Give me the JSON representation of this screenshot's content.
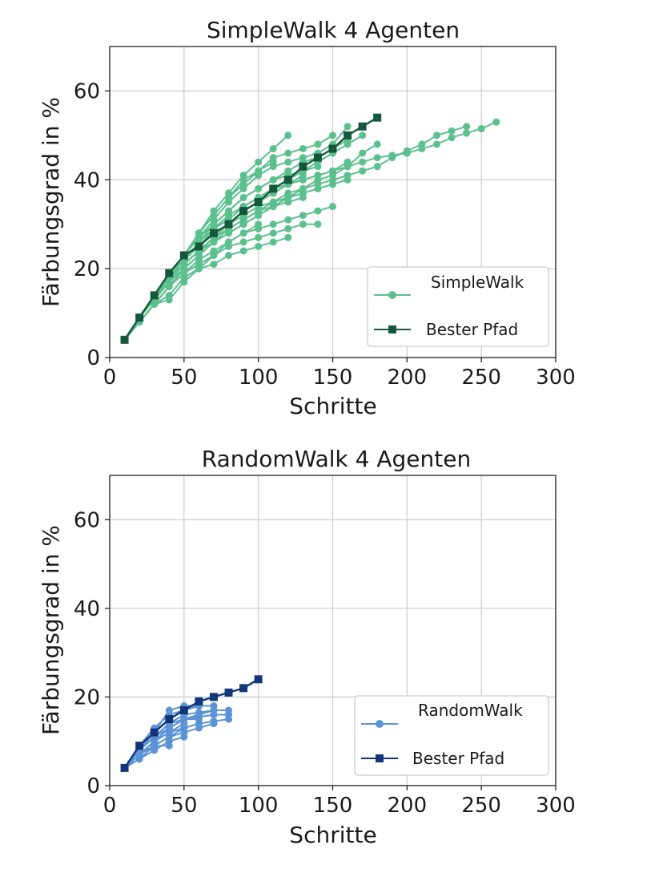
{
  "chart_data": [
    {
      "type": "line",
      "title": "SimpleWalk  4 Agenten",
      "xlabel": "Schritte",
      "ylabel": "Färbungsgrad in %",
      "xlim": [
        0,
        300
      ],
      "ylim": [
        0,
        70
      ],
      "xticks": [
        0,
        50,
        100,
        150,
        200,
        250,
        300
      ],
      "yticks": [
        0,
        20,
        40,
        60
      ],
      "grid": true,
      "legend_position": "lower-right",
      "legend": [
        "SimpleWalk",
        "Bester Pfad"
      ],
      "colors": {
        "runs": "#5cc08e",
        "best": "#15573b"
      },
      "series": [
        {
          "name": "SimpleWalk",
          "x": [
            10,
            20,
            30,
            40,
            50,
            60,
            70,
            80,
            90,
            100,
            110,
            120,
            130,
            140,
            150,
            160,
            170,
            180,
            190,
            200,
            210,
            220,
            230,
            240,
            250,
            260
          ],
          "y": [
            4,
            9,
            14,
            19,
            22,
            25,
            28,
            30,
            33,
            35,
            37,
            39,
            40,
            41,
            42,
            43,
            44,
            45,
            45.5,
            46,
            47,
            48,
            49.5,
            50.5,
            51.5,
            53
          ]
        },
        {
          "name": "SimpleWalk",
          "x": [
            10,
            20,
            30,
            40,
            50,
            60,
            70,
            80,
            90,
            100,
            110,
            120,
            130,
            140,
            150,
            160,
            170,
            180,
            190,
            200,
            210,
            220,
            230,
            240
          ],
          "y": [
            4,
            9,
            13,
            18,
            21,
            24,
            27,
            29,
            31,
            33,
            35,
            37,
            38,
            39,
            40,
            41,
            42,
            43,
            45,
            46.5,
            48,
            50,
            51,
            52
          ]
        },
        {
          "name": "SimpleWalk",
          "x": [
            10,
            20,
            30,
            40,
            50,
            60,
            70,
            80,
            90,
            100,
            110,
            120,
            130,
            140,
            150,
            160,
            170,
            180
          ],
          "y": [
            4,
            9,
            13,
            18,
            21,
            24,
            26,
            28,
            30,
            32,
            34,
            36,
            38,
            40,
            41,
            43,
            46,
            48
          ]
        },
        {
          "name": "SimpleWalk",
          "x": [
            10,
            20,
            30,
            40,
            50,
            60,
            70,
            80,
            90,
            100,
            110,
            120,
            130,
            140,
            150,
            160,
            170
          ],
          "y": [
            4,
            9,
            14,
            19,
            23,
            27,
            30,
            33,
            36,
            38,
            40,
            41,
            42,
            44,
            46,
            48,
            50
          ]
        },
        {
          "name": "SimpleWalk",
          "x": [
            10,
            20,
            30,
            40,
            50,
            60,
            70,
            80,
            90,
            100,
            110,
            120
          ],
          "y": [
            4,
            9,
            14,
            19,
            23,
            28,
            33,
            37,
            41,
            44,
            47,
            50
          ]
        },
        {
          "name": "SimpleWalk",
          "x": [
            10,
            20,
            30,
            40,
            50,
            60,
            70,
            80,
            90,
            100,
            110,
            120,
            130,
            140,
            150
          ],
          "y": [
            4,
            9,
            14,
            19,
            23,
            28,
            32,
            36,
            40,
            42,
            45,
            46,
            47,
            48,
            50
          ]
        },
        {
          "name": "SimpleWalk",
          "x": [
            10,
            20,
            30,
            40,
            50,
            60,
            70,
            80,
            90,
            100,
            110,
            120,
            130,
            140,
            150,
            160
          ],
          "y": [
            4,
            9,
            14,
            19,
            23,
            27,
            31,
            35,
            38,
            41,
            43,
            44,
            45,
            46,
            48,
            52
          ]
        },
        {
          "name": "SimpleWalk",
          "x": [
            10,
            20,
            30,
            40,
            50,
            60,
            70,
            80,
            90,
            100,
            110,
            120,
            130,
            140,
            150,
            160
          ],
          "y": [
            4,
            9,
            14,
            19,
            22,
            26,
            30,
            33,
            36,
            38,
            40,
            42,
            44,
            45,
            47,
            49
          ]
        },
        {
          "name": "SimpleWalk",
          "x": [
            10,
            20,
            30,
            40,
            50,
            60,
            70,
            80,
            90,
            100,
            110,
            120,
            130,
            140,
            150,
            160
          ],
          "y": [
            4,
            9,
            14,
            18,
            22,
            25,
            29,
            32,
            34,
            36,
            38,
            39,
            40,
            41,
            42,
            44
          ]
        },
        {
          "name": "SimpleWalk",
          "x": [
            10,
            20,
            30,
            40,
            50,
            60,
            70,
            80,
            90,
            100,
            110,
            120,
            130,
            140,
            150,
            160
          ],
          "y": [
            4,
            9,
            13,
            18,
            21,
            24,
            27,
            30,
            32,
            34,
            35,
            36,
            37,
            38,
            39,
            40
          ]
        },
        {
          "name": "SimpleWalk",
          "x": [
            10,
            20,
            30,
            40,
            50,
            60,
            70,
            80,
            90,
            100,
            110,
            120,
            130,
            140,
            150
          ],
          "y": [
            4,
            8,
            12,
            16,
            20,
            23,
            26,
            29,
            31,
            33,
            34,
            36,
            37,
            38,
            39
          ]
        },
        {
          "name": "SimpleWalk",
          "x": [
            10,
            20,
            30,
            40,
            50,
            60,
            70,
            80,
            90,
            100,
            110,
            120,
            130,
            140,
            150
          ],
          "y": [
            4,
            8,
            12,
            16,
            19,
            22,
            24,
            26,
            28,
            29,
            30,
            31,
            32,
            33,
            34
          ]
        },
        {
          "name": "SimpleWalk",
          "x": [
            10,
            20,
            30,
            40,
            50,
            60,
            70,
            80,
            90,
            100,
            110,
            120,
            130,
            140
          ],
          "y": [
            4,
            8,
            12,
            16,
            19,
            21,
            23,
            25,
            26,
            27,
            28,
            29,
            30,
            30
          ]
        },
        {
          "name": "SimpleWalk",
          "x": [
            10,
            20,
            30,
            40,
            50,
            60,
            70,
            80,
            90,
            100,
            110,
            120
          ],
          "y": [
            4,
            8,
            12,
            14,
            18,
            20,
            21,
            23,
            24,
            25,
            26,
            27
          ]
        },
        {
          "name": "SimpleWalk",
          "x": [
            10,
            20,
            30,
            40,
            50,
            60,
            70,
            80,
            90,
            100,
            110,
            120,
            130
          ],
          "y": [
            4,
            9,
            13,
            17,
            21,
            24,
            27,
            30,
            33,
            35,
            37,
            39,
            41
          ]
        },
        {
          "name": "SimpleWalk",
          "x": [
            10,
            20,
            30,
            40,
            50,
            60,
            70,
            80,
            90,
            100,
            110,
            120,
            130,
            140
          ],
          "y": [
            4,
            9,
            14,
            18,
            22,
            26,
            29,
            31,
            34,
            36,
            38,
            40,
            42,
            43
          ]
        },
        {
          "name": "SimpleWalk",
          "x": [
            10,
            20,
            30,
            40,
            50,
            60,
            70,
            80,
            90,
            100,
            110
          ],
          "y": [
            4,
            9,
            14,
            19,
            23,
            28,
            32,
            36,
            39,
            42,
            44
          ]
        },
        {
          "name": "SimpleWalk",
          "x": [
            10,
            20,
            30,
            40,
            50,
            60,
            70,
            80,
            90,
            100,
            110,
            120,
            130
          ],
          "y": [
            4,
            9,
            13,
            17,
            20,
            23,
            26,
            28,
            30,
            32,
            34,
            35,
            36
          ]
        },
        {
          "name": "SimpleWalk",
          "x": [
            10,
            20,
            30,
            40,
            50,
            60,
            70,
            80,
            90,
            100
          ],
          "y": [
            4,
            8,
            12,
            13,
            17,
            20,
            23,
            26,
            28,
            30
          ]
        },
        {
          "name": "Bester Pfad",
          "x": [
            10,
            20,
            30,
            40,
            50,
            60,
            70,
            80,
            90,
            100,
            110,
            120,
            130,
            140,
            150,
            160,
            170,
            180
          ],
          "y": [
            4,
            9,
            14,
            19,
            23,
            25,
            28,
            30,
            33,
            35,
            38,
            40,
            43,
            45,
            47,
            50,
            52,
            54
          ]
        }
      ]
    },
    {
      "type": "line",
      "title": "RandomWalk 4 Agenten",
      "xlabel": "Schritte",
      "ylabel": "Färbungsgrad in %",
      "xlim": [
        0,
        300
      ],
      "ylim": [
        0,
        70
      ],
      "xticks": [
        0,
        50,
        100,
        150,
        200,
        250,
        300
      ],
      "yticks": [
        0,
        20,
        40,
        60
      ],
      "grid": true,
      "legend_position": "lower-right",
      "legend": [
        "RandomWalk",
        "Bester Pfad"
      ],
      "colors": {
        "runs": "#5b93d6",
        "best": "#13357a"
      },
      "series": [
        {
          "name": "RandomWalk",
          "x": [
            10,
            20,
            30,
            40,
            50,
            60,
            70,
            80
          ],
          "y": [
            4,
            8,
            11,
            14,
            16,
            16.5,
            17,
            17
          ]
        },
        {
          "name": "RandomWalk",
          "x": [
            10,
            20,
            30,
            40,
            50,
            60,
            70,
            80
          ],
          "y": [
            4,
            7,
            10,
            12,
            13,
            14,
            14.5,
            15
          ]
        },
        {
          "name": "RandomWalk",
          "x": [
            10,
            20,
            30,
            40,
            50,
            60,
            70,
            80
          ],
          "y": [
            4,
            8,
            11,
            13,
            15,
            15.5,
            16,
            16
          ]
        },
        {
          "name": "RandomWalk",
          "x": [
            10,
            20,
            30,
            40,
            50,
            60,
            70
          ],
          "y": [
            4,
            7,
            9,
            11,
            12,
            13,
            14
          ]
        },
        {
          "name": "RandomWalk",
          "x": [
            10,
            20,
            30,
            40,
            50,
            60,
            70
          ],
          "y": [
            4,
            8,
            12,
            15,
            17,
            18,
            18
          ]
        },
        {
          "name": "RandomWalk",
          "x": [
            10,
            20,
            30,
            40,
            50,
            60
          ],
          "y": [
            4,
            9,
            13,
            16,
            17,
            18
          ]
        },
        {
          "name": "RandomWalk",
          "x": [
            10,
            20,
            30,
            40,
            50,
            60
          ],
          "y": [
            4,
            8,
            12,
            17,
            18,
            18
          ]
        },
        {
          "name": "RandomWalk",
          "x": [
            10,
            20,
            30,
            40,
            50,
            60
          ],
          "y": [
            4,
            7,
            10,
            13,
            15,
            16
          ]
        },
        {
          "name": "RandomWalk",
          "x": [
            10,
            20,
            30,
            40,
            50,
            60
          ],
          "y": [
            4,
            6,
            9,
            11,
            13,
            14
          ]
        },
        {
          "name": "RandomWalk",
          "x": [
            10,
            20,
            30,
            40,
            50
          ],
          "y": [
            4,
            6,
            8,
            10,
            11
          ]
        },
        {
          "name": "RandomWalk",
          "x": [
            10,
            20,
            30,
            40,
            50
          ],
          "y": [
            4,
            7,
            10,
            12,
            14
          ]
        },
        {
          "name": "RandomWalk",
          "x": [
            10,
            20,
            30,
            40,
            50,
            60
          ],
          "y": [
            4,
            8,
            11,
            14,
            15,
            15
          ]
        },
        {
          "name": "RandomWalk",
          "x": [
            10,
            20,
            30,
            40
          ],
          "y": [
            4,
            7,
            9,
            9
          ]
        },
        {
          "name": "RandomWalk",
          "x": [
            10,
            20,
            30,
            40,
            50,
            60,
            70
          ],
          "y": [
            4,
            7,
            10,
            13,
            15,
            16,
            17
          ]
        },
        {
          "name": "Bester Pfad",
          "x": [
            10,
            20,
            30,
            40,
            50,
            60,
            70,
            80,
            90,
            100
          ],
          "y": [
            4,
            9,
            12,
            15,
            17,
            19,
            20,
            21,
            22,
            24
          ]
        }
      ]
    }
  ]
}
